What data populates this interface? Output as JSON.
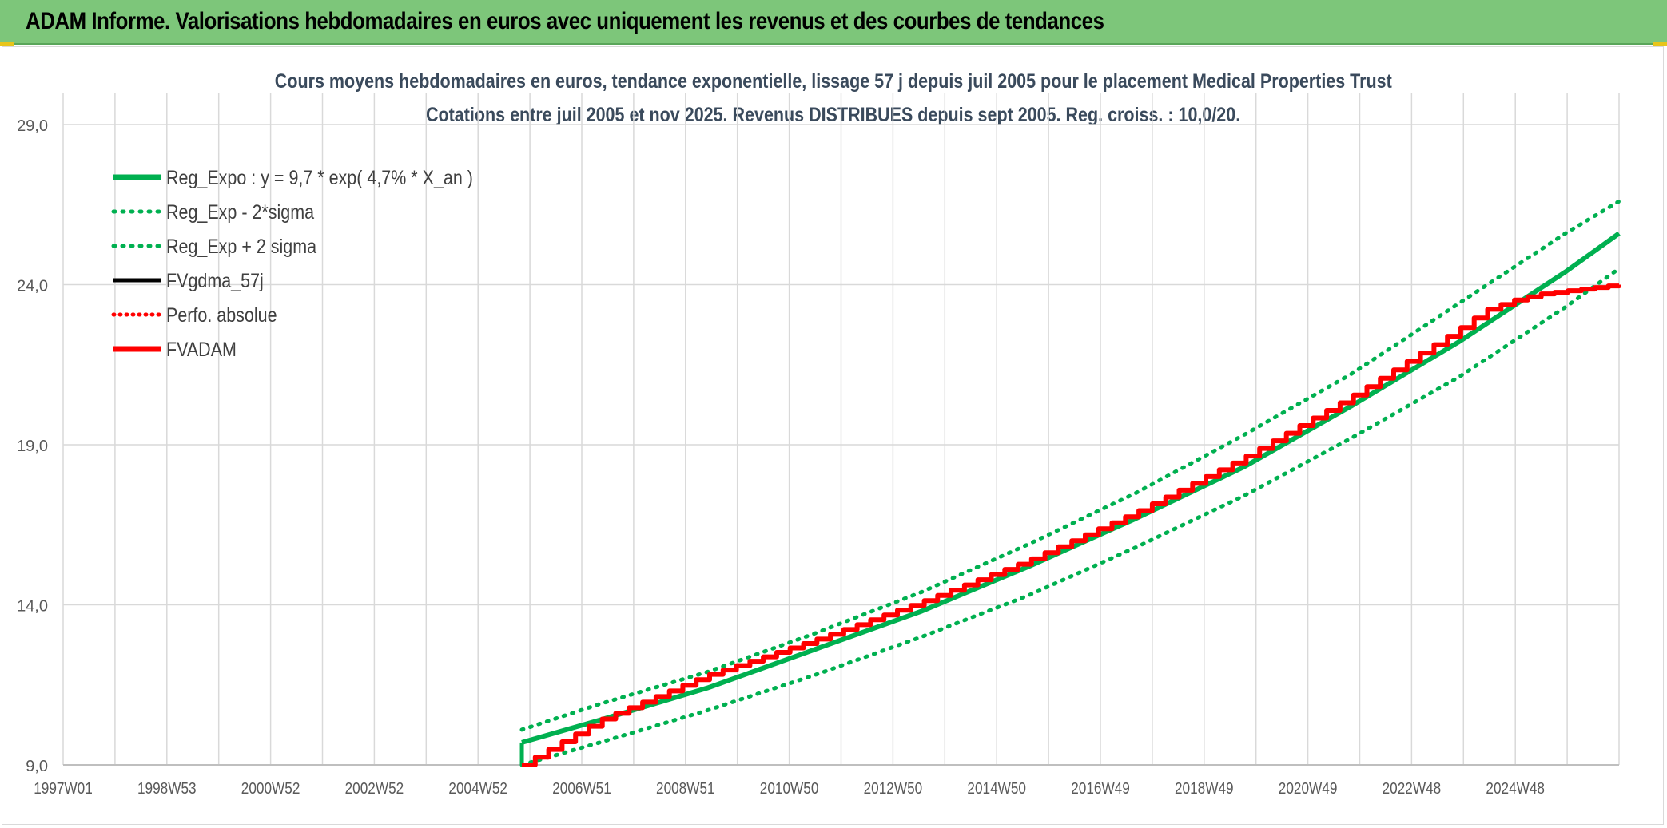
{
  "header": {
    "title": "ADAM Informe. Valorisations hebdomadaires en euros avec uniquement les revenus et des courbes de tendances"
  },
  "colors": {
    "banner": "#7dc67a",
    "trend": "#00b050",
    "fvadam": "#ff0000",
    "fvgdma": "#000000",
    "grid": "#d9d9d9",
    "title_text": "#3a4a5c"
  },
  "chart_data": {
    "type": "line",
    "title_line1": "Cours moyens hebdomadaires en euros, tendance exponentielle, lissage 57 j depuis juil 2005 pour le placement Medical Properties Trust",
    "title_line2": "Cotations entre juil 2005 et nov 2025. Revenus DISTRIBUES depuis sept 2005. Reg. croiss. : 10,0/20.",
    "xlabel": "",
    "ylabel": "",
    "ylim": [
      9.0,
      29.0
    ],
    "yticks": [
      "9,0",
      "14,0",
      "19,0",
      "24,0",
      "29,0"
    ],
    "xlim": [
      1997.0,
      2026.0
    ],
    "xticks": [
      "1997W01",
      "1998W53",
      "2000W52",
      "2002W52",
      "2004W52",
      "2006W51",
      "2008W51",
      "2010W50",
      "2012W50",
      "2014W50",
      "2016W49",
      "2018W49",
      "2020W49",
      "2022W48",
      "2024W48"
    ],
    "grid": true,
    "legend_position": "top-left",
    "legend": [
      {
        "label": "Reg_Expo : y = 9,7 * exp( 4,7% *  X_an )",
        "style": "solid-thick",
        "color": "#00b050"
      },
      {
        "label": "Reg_Exp - 2*sigma",
        "style": "dotted",
        "color": "#00b050"
      },
      {
        "label": "Reg_Exp + 2 sigma",
        "style": "dotted",
        "color": "#00b050"
      },
      {
        "label": "FVgdma_57j",
        "style": "solid",
        "color": "#000000"
      },
      {
        "label": "Perfo. absolue",
        "style": "dotted",
        "color": "#ff0000"
      },
      {
        "label": "FVADAM",
        "style": "solid-thick",
        "color": "#ff0000"
      }
    ],
    "series": [
      {
        "name": "Reg_Expo : y = 9,7 * exp( 4,7% *  X_an )",
        "x": [
          2005.55,
          2007,
          2009,
          2011,
          2013,
          2015,
          2017,
          2019,
          2021,
          2023,
          2025,
          2026.0
        ],
        "y": [
          9.7,
          10.4,
          11.4,
          12.6,
          13.8,
          15.2,
          16.7,
          18.3,
          20.2,
          22.2,
          24.4,
          25.6
        ]
      },
      {
        "name": "Reg_Exp - 2*sigma",
        "x": [
          2005.55,
          2007,
          2009,
          2011,
          2013,
          2015,
          2017,
          2019,
          2021,
          2023,
          2025,
          2026.0
        ],
        "y": [
          9.0,
          9.7,
          10.7,
          11.8,
          13.0,
          14.3,
          15.8,
          17.4,
          19.2,
          21.1,
          23.3,
          24.5
        ]
      },
      {
        "name": "Reg_Exp + 2 sigma",
        "x": [
          2005.55,
          2007,
          2009,
          2011,
          2013,
          2015,
          2017,
          2019,
          2021,
          2023,
          2025,
          2026.0
        ],
        "y": [
          10.1,
          10.9,
          11.9,
          13.1,
          14.4,
          15.9,
          17.5,
          19.3,
          21.2,
          23.4,
          25.6,
          26.6
        ]
      },
      {
        "name": "FVADAM",
        "x": [
          2005.55,
          2007,
          2009,
          2011,
          2013,
          2015,
          2017,
          2019,
          2021,
          2023,
          2023.5,
          2024,
          2024.5,
          2025,
          2025.5,
          2026.0
        ],
        "y": [
          9.0,
          10.4,
          11.8,
          12.9,
          14.1,
          15.4,
          16.9,
          18.6,
          20.5,
          22.6,
          23.2,
          23.5,
          23.7,
          23.8,
          23.9,
          24.0
        ]
      }
    ]
  }
}
